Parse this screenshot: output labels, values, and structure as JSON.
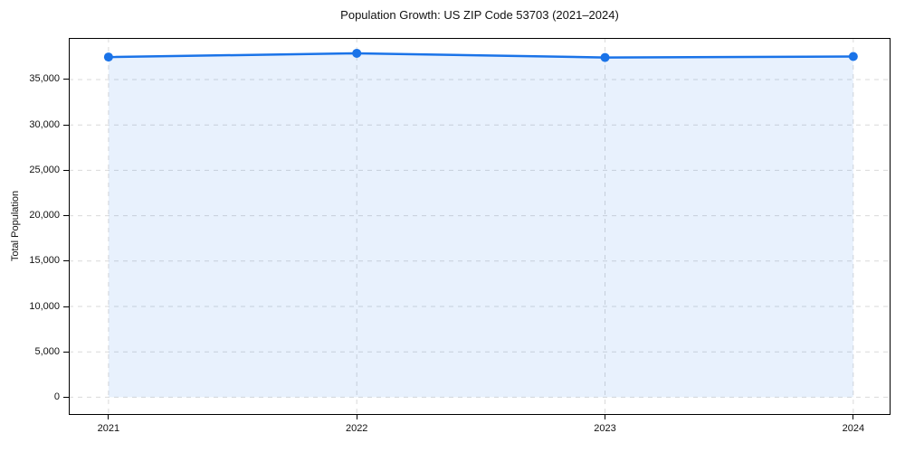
{
  "chart_data": {
    "type": "line",
    "title": "Population Growth: US ZIP Code 53703 (2021–2024)",
    "xlabel": "",
    "ylabel": "Total Population",
    "categories": [
      2021,
      2022,
      2023,
      2024
    ],
    "series": [
      {
        "name": "Total Population",
        "values": [
          37480,
          37890,
          37430,
          37540
        ]
      }
    ],
    "yticks": [
      0,
      5000,
      10000,
      15000,
      20000,
      25000,
      30000,
      35000
    ],
    "ylim": [
      -1950,
      39580
    ],
    "xlim": [
      2020.84,
      2024.15
    ],
    "grid": true,
    "legend": false,
    "marker": "circle",
    "area_fill": true,
    "colors": {
      "line": "#1a73e8",
      "fill": "#1a73e8",
      "fill_opacity": 0.1,
      "grid": "#d9d9d9",
      "axis": "#000000",
      "text": "#111111",
      "background": "#ffffff"
    }
  }
}
